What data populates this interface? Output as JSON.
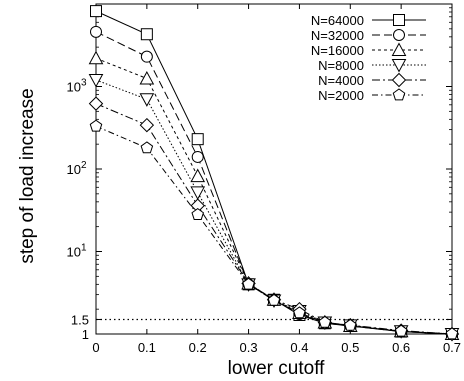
{
  "chart_data": {
    "type": "line",
    "xlabel": "lower cutoff",
    "ylabel": "step of load increase",
    "yscale": "log",
    "xlim": [
      0,
      0.7
    ],
    "ylim": [
      1,
      10000
    ],
    "x_ticks": [
      {
        "value": 0,
        "label": "0"
      },
      {
        "value": 0.1,
        "label": "0.1"
      },
      {
        "value": 0.2,
        "label": "0.2"
      },
      {
        "value": 0.3,
        "label": "0.3"
      },
      {
        "value": 0.4,
        "label": "0.4"
      },
      {
        "value": 0.5,
        "label": "0.5"
      },
      {
        "value": 0.6,
        "label": "0.6"
      },
      {
        "value": 0.7,
        "label": "0.7"
      }
    ],
    "y_ticks": [
      {
        "value": 1,
        "label": "1"
      },
      {
        "value": 1.5,
        "label": "1.5"
      },
      {
        "value": 10,
        "label": "10",
        "sup": "1"
      },
      {
        "value": 100,
        "label": "10",
        "sup": "2"
      },
      {
        "value": 1000,
        "label": "10",
        "sup": "3"
      }
    ],
    "reference_line": {
      "y": 1.5,
      "style": "dotted"
    },
    "legend_position": "top-right",
    "x": [
      0,
      0.1,
      0.2,
      0.3,
      0.35,
      0.4,
      0.45,
      0.5,
      0.6,
      0.7
    ],
    "series": [
      {
        "name": "N=64000",
        "marker": "square",
        "dash": "solid",
        "values": [
          8200,
          4300,
          230,
          4.0,
          2.6,
          1.7,
          1.35,
          1.25,
          1.07,
          1.0
        ]
      },
      {
        "name": "N=32000",
        "marker": "circle",
        "dash": "8,4",
        "values": [
          4600,
          2300,
          140,
          4.0,
          2.6,
          1.75,
          1.35,
          1.25,
          1.07,
          1.0
        ]
      },
      {
        "name": "N=16000",
        "marker": "triangle-up",
        "dash": "3,3",
        "values": [
          2200,
          1250,
          82,
          4.1,
          2.6,
          1.8,
          1.38,
          1.25,
          1.08,
          1.0
        ]
      },
      {
        "name": "N=8000",
        "marker": "triangle-down",
        "dash": "1.5,2",
        "values": [
          1200,
          700,
          52,
          4.0,
          2.55,
          1.9,
          1.38,
          1.27,
          1.08,
          1.0
        ]
      },
      {
        "name": "N=4000",
        "marker": "diamond",
        "dash": "8,3,2,3",
        "values": [
          620,
          340,
          36,
          4.1,
          2.6,
          2.0,
          1.38,
          1.28,
          1.1,
          1.0
        ]
      },
      {
        "name": "N=2000",
        "marker": "pentagon",
        "dash": "6,3,1.5,3",
        "values": [
          330,
          180,
          28,
          4.0,
          2.55,
          1.8,
          1.38,
          1.27,
          1.08,
          1.0
        ]
      }
    ]
  }
}
